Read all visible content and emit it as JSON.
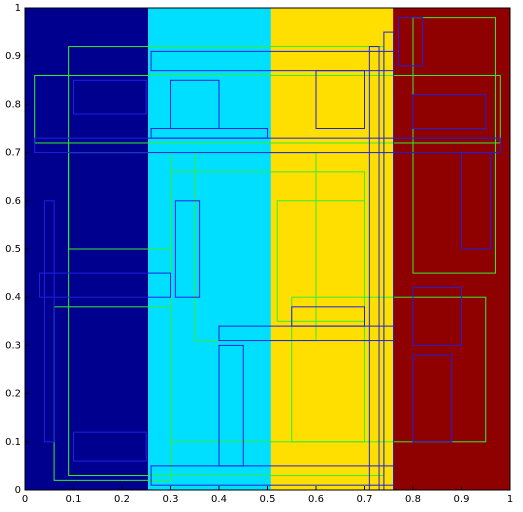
{
  "chart_data": {
    "type": "rect",
    "xlim": [
      0,
      1
    ],
    "ylim": [
      0,
      1
    ],
    "xticks": [
      0,
      0.1,
      0.2,
      0.3,
      0.4,
      0.5,
      0.6,
      0.7,
      0.8,
      0.9,
      1
    ],
    "yticks": [
      0,
      0.1,
      0.2,
      0.3,
      0.4,
      0.5,
      0.6,
      0.7,
      0.8,
      0.9,
      1
    ],
    "regions": [
      {
        "color": "#00008f",
        "x": [
          0,
          0.254
        ]
      },
      {
        "color": "#00dfff",
        "x": [
          0.254,
          0.507
        ]
      },
      {
        "color": "#ffdf00",
        "x": [
          0.507,
          0.759
        ]
      },
      {
        "color": "#8f0000",
        "x": [
          0.759,
          1
        ]
      }
    ],
    "boxes": [
      {
        "color": "#33ee33",
        "rects": [
          [
            0.09,
            0.74,
            0.03,
            0.92
          ],
          [
            0.02,
            0.98,
            0.72,
            0.86
          ],
          [
            0.3,
            0.7,
            0.1,
            0.66
          ],
          [
            0.06,
            0.3,
            0.02,
            0.38
          ],
          [
            0.55,
            0.95,
            0.1,
            0.4
          ],
          [
            0.8,
            0.97,
            0.45,
            0.98
          ],
          [
            0.09,
            0.3,
            0.5,
            0.7
          ],
          [
            0.35,
            0.6,
            0.31,
            0.7
          ],
          [
            0.52,
            0.7,
            0.35,
            0.6
          ]
        ]
      },
      {
        "color": "#2020e0",
        "rects": [
          [
            0.02,
            0.98,
            0.7,
            0.73
          ],
          [
            0.26,
            0.5,
            0.73,
            0.75
          ],
          [
            0.26,
            0.76,
            0.87,
            0.91
          ],
          [
            0.26,
            0.76,
            0.01,
            0.05
          ],
          [
            0.4,
            0.76,
            0.31,
            0.34
          ],
          [
            0.71,
            0.73,
            0,
            0.92
          ],
          [
            0.74,
            0.76,
            0,
            0.95
          ],
          [
            0.03,
            0.3,
            0.4,
            0.45
          ],
          [
            0.04,
            0.06,
            0.1,
            0.6
          ],
          [
            0.4,
            0.45,
            0.05,
            0.3
          ],
          [
            0.8,
            0.9,
            0.3,
            0.42
          ],
          [
            0.8,
            0.95,
            0.75,
            0.82
          ],
          [
            0.1,
            0.25,
            0.78,
            0.85
          ],
          [
            0.3,
            0.4,
            0.75,
            0.85
          ],
          [
            0.6,
            0.7,
            0.75,
            0.87
          ],
          [
            0.8,
            0.88,
            0.1,
            0.28
          ],
          [
            0.1,
            0.25,
            0.06,
            0.12
          ],
          [
            0.31,
            0.36,
            0.4,
            0.6
          ],
          [
            0.55,
            0.7,
            0.34,
            0.38
          ],
          [
            0.9,
            0.96,
            0.5,
            0.7
          ],
          [
            0.77,
            0.82,
            0.88,
            0.98
          ]
        ]
      }
    ]
  }
}
